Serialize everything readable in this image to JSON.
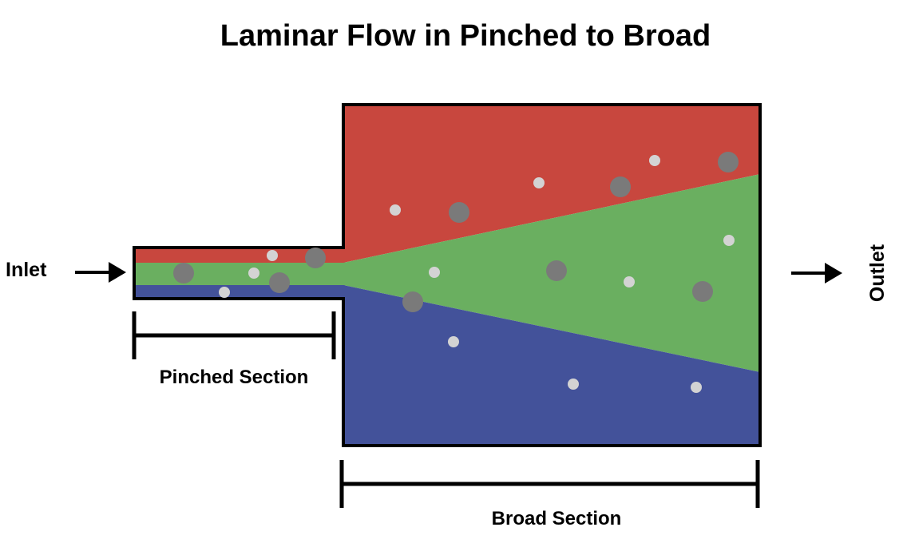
{
  "title": "Laminar Flow in Pinched to Broad",
  "labels": {
    "inlet": "Inlet",
    "outlet": "Outlet",
    "pinched_section": "Pinched Section",
    "broad_section": "Broad Section"
  },
  "colors": {
    "red_stream": "#c8473e",
    "green_stream": "#6aaf60",
    "blue_stream": "#43529a",
    "outline": "#000000",
    "large_particle": "#7a7a7a",
    "small_particle": "#d3d3d3"
  },
  "icons": {
    "inlet_arrow": "arrow-right-icon",
    "outlet_arrow": "arrow-right-icon"
  }
}
